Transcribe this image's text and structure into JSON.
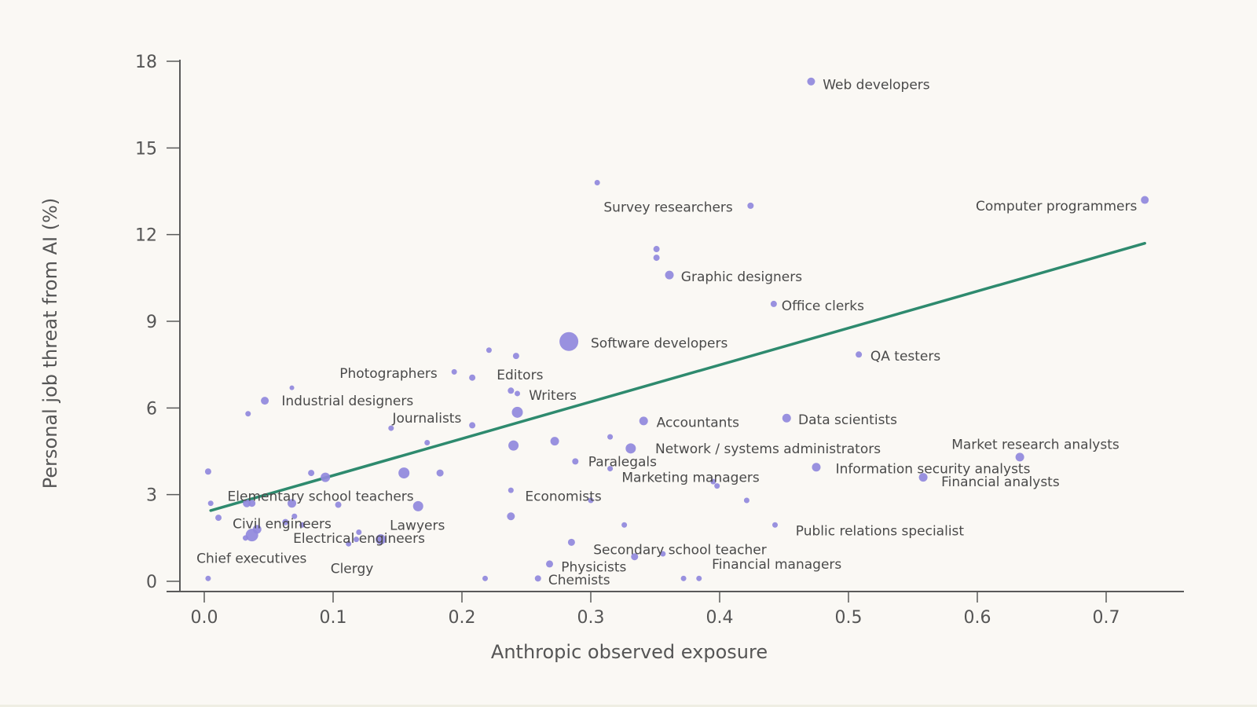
{
  "colors": {
    "background": "#faf8f4",
    "point": "#9088dc",
    "trend": "#2e8a6e",
    "axis": "#5a5a5a",
    "text": "#4a4a4a"
  },
  "chart_data": {
    "type": "scatter",
    "title": "",
    "xlabel": "Anthropic observed exposure",
    "ylabel": "Personal job threat from AI (%)",
    "xlim": [
      -0.02,
      0.765
    ],
    "ylim": [
      -0.25,
      18
    ],
    "xticks": [
      0.0,
      0.1,
      0.2,
      0.3,
      0.4,
      0.5,
      0.6,
      0.7
    ],
    "xtick_labels": [
      "0.0",
      "0.1",
      "0.2",
      "0.3",
      "0.4",
      "0.5",
      "0.6",
      "0.7"
    ],
    "yticks": [
      0,
      3,
      6,
      9,
      12,
      15,
      18
    ],
    "ytick_labels": [
      "0",
      "3",
      "6",
      "9",
      "12",
      "15",
      "18"
    ],
    "trend_line": {
      "x": [
        0.005,
        0.73
      ],
      "y": [
        2.45,
        11.7
      ]
    },
    "labels": [
      {
        "text": "Web developers",
        "x": 0.48,
        "y": 17.2,
        "anchor": "start"
      },
      {
        "text": "Survey researchers",
        "x": 0.31,
        "y": 12.95,
        "anchor": "start"
      },
      {
        "text": "Computer programmers",
        "x": 0.724,
        "y": 13.0,
        "anchor": "end"
      },
      {
        "text": "Graphic designers",
        "x": 0.37,
        "y": 10.55,
        "anchor": "start"
      },
      {
        "text": "Office clerks",
        "x": 0.448,
        "y": 9.55,
        "anchor": "start"
      },
      {
        "text": "Software developers",
        "x": 0.3,
        "y": 8.25,
        "anchor": "start"
      },
      {
        "text": "QA testers",
        "x": 0.517,
        "y": 7.8,
        "anchor": "start"
      },
      {
        "text": "Photographers",
        "x": 0.105,
        "y": 7.2,
        "anchor": "start"
      },
      {
        "text": "Editors",
        "x": 0.227,
        "y": 7.15,
        "anchor": "start"
      },
      {
        "text": "Writers",
        "x": 0.252,
        "y": 6.45,
        "anchor": "start"
      },
      {
        "text": "Industrial designers",
        "x": 0.06,
        "y": 6.25,
        "anchor": "start"
      },
      {
        "text": "Journalists",
        "x": 0.146,
        "y": 5.65,
        "anchor": "start"
      },
      {
        "text": "Accountants",
        "x": 0.351,
        "y": 5.5,
        "anchor": "start"
      },
      {
        "text": "Data scientists",
        "x": 0.461,
        "y": 5.6,
        "anchor": "start"
      },
      {
        "text": "Network / systems administrators",
        "x": 0.35,
        "y": 4.6,
        "anchor": "start"
      },
      {
        "text": "Market research analysts",
        "x": 0.58,
        "y": 4.75,
        "anchor": "start"
      },
      {
        "text": "Paralegals",
        "x": 0.298,
        "y": 4.15,
        "anchor": "start"
      },
      {
        "text": "Information security analysts",
        "x": 0.49,
        "y": 3.9,
        "anchor": "start"
      },
      {
        "text": "Marketing managers",
        "x": 0.324,
        "y": 3.6,
        "anchor": "start"
      },
      {
        "text": "Financial analysts",
        "x": 0.572,
        "y": 3.45,
        "anchor": "start"
      },
      {
        "text": "Elementary school teachers",
        "x": 0.018,
        "y": 2.95,
        "anchor": "start"
      },
      {
        "text": "Economists",
        "x": 0.249,
        "y": 2.95,
        "anchor": "start"
      },
      {
        "text": "Lawyers",
        "x": 0.144,
        "y": 1.95,
        "anchor": "start"
      },
      {
        "text": "Civil engineers",
        "x": 0.022,
        "y": 2.0,
        "anchor": "start"
      },
      {
        "text": "Public relations specialist",
        "x": 0.459,
        "y": 1.75,
        "anchor": "start"
      },
      {
        "text": "Electrical engineers",
        "x": 0.069,
        "y": 1.5,
        "anchor": "start"
      },
      {
        "text": "Secondary school teacher",
        "x": 0.302,
        "y": 1.1,
        "anchor": "start"
      },
      {
        "text": "Chief executives",
        "x": -0.006,
        "y": 0.8,
        "anchor": "start"
      },
      {
        "text": "Financial managers",
        "x": 0.394,
        "y": 0.6,
        "anchor": "start"
      },
      {
        "text": "Clergy",
        "x": 0.098,
        "y": 0.45,
        "anchor": "start"
      },
      {
        "text": "Physicists",
        "x": 0.277,
        "y": 0.5,
        "anchor": "start"
      },
      {
        "text": "Chemists",
        "x": 0.267,
        "y": 0.05,
        "anchor": "start"
      }
    ],
    "points": [
      {
        "x": 0.471,
        "y": 17.3,
        "size": 5
      },
      {
        "x": 0.305,
        "y": 13.8,
        "size": 3.5
      },
      {
        "x": 0.424,
        "y": 13.0,
        "size": 4
      },
      {
        "x": 0.73,
        "y": 13.2,
        "size": 5
      },
      {
        "x": 0.351,
        "y": 11.5,
        "size": 4
      },
      {
        "x": 0.351,
        "y": 11.2,
        "size": 4
      },
      {
        "x": 0.361,
        "y": 10.6,
        "size": 5.5
      },
      {
        "x": 0.442,
        "y": 9.6,
        "size": 4
      },
      {
        "x": 0.283,
        "y": 8.3,
        "size": 12
      },
      {
        "x": 0.508,
        "y": 7.85,
        "size": 4
      },
      {
        "x": 0.221,
        "y": 8.0,
        "size": 3.5
      },
      {
        "x": 0.242,
        "y": 7.8,
        "size": 4
      },
      {
        "x": 0.194,
        "y": 7.25,
        "size": 3.5
      },
      {
        "x": 0.208,
        "y": 7.05,
        "size": 4
      },
      {
        "x": 0.238,
        "y": 6.6,
        "size": 4
      },
      {
        "x": 0.243,
        "y": 6.5,
        "size": 3.5
      },
      {
        "x": 0.068,
        "y": 6.7,
        "size": 3
      },
      {
        "x": 0.047,
        "y": 6.25,
        "size": 5
      },
      {
        "x": 0.034,
        "y": 5.8,
        "size": 3.5
      },
      {
        "x": 0.243,
        "y": 5.85,
        "size": 7
      },
      {
        "x": 0.208,
        "y": 5.4,
        "size": 4
      },
      {
        "x": 0.145,
        "y": 5.3,
        "size": 3.5
      },
      {
        "x": 0.341,
        "y": 5.55,
        "size": 5.5
      },
      {
        "x": 0.452,
        "y": 5.65,
        "size": 5.5
      },
      {
        "x": 0.173,
        "y": 4.8,
        "size": 3.5
      },
      {
        "x": 0.315,
        "y": 5.0,
        "size": 3.5
      },
      {
        "x": 0.272,
        "y": 4.85,
        "size": 5.5
      },
      {
        "x": 0.24,
        "y": 4.7,
        "size": 6.5
      },
      {
        "x": 0.331,
        "y": 4.6,
        "size": 6.5
      },
      {
        "x": 0.633,
        "y": 4.3,
        "size": 5.5
      },
      {
        "x": 0.288,
        "y": 4.15,
        "size": 4
      },
      {
        "x": 0.475,
        "y": 3.95,
        "size": 5.5
      },
      {
        "x": 0.003,
        "y": 3.8,
        "size": 4
      },
      {
        "x": 0.083,
        "y": 3.75,
        "size": 4
      },
      {
        "x": 0.094,
        "y": 3.6,
        "size": 6
      },
      {
        "x": 0.155,
        "y": 3.75,
        "size": 7
      },
      {
        "x": 0.183,
        "y": 3.75,
        "size": 4.5
      },
      {
        "x": 0.315,
        "y": 3.9,
        "size": 3.5
      },
      {
        "x": 0.558,
        "y": 3.6,
        "size": 5.5
      },
      {
        "x": 0.395,
        "y": 3.45,
        "size": 3.5
      },
      {
        "x": 0.398,
        "y": 3.3,
        "size": 3.5
      },
      {
        "x": 0.238,
        "y": 3.15,
        "size": 3.5
      },
      {
        "x": 0.421,
        "y": 2.8,
        "size": 3.5
      },
      {
        "x": 0.3,
        "y": 2.8,
        "size": 3.5
      },
      {
        "x": 0.005,
        "y": 2.7,
        "size": 3.5
      },
      {
        "x": 0.033,
        "y": 2.7,
        "size": 5
      },
      {
        "x": 0.037,
        "y": 2.7,
        "size": 4.5
      },
      {
        "x": 0.068,
        "y": 2.7,
        "size": 5.5
      },
      {
        "x": 0.104,
        "y": 2.65,
        "size": 4
      },
      {
        "x": 0.166,
        "y": 2.6,
        "size": 6.5
      },
      {
        "x": 0.011,
        "y": 2.2,
        "size": 4
      },
      {
        "x": 0.063,
        "y": 2.05,
        "size": 4
      },
      {
        "x": 0.07,
        "y": 2.25,
        "size": 3.5
      },
      {
        "x": 0.076,
        "y": 1.95,
        "size": 3.5
      },
      {
        "x": 0.238,
        "y": 2.25,
        "size": 5
      },
      {
        "x": 0.326,
        "y": 1.95,
        "size": 3.5
      },
      {
        "x": 0.443,
        "y": 1.95,
        "size": 3.5
      },
      {
        "x": 0.041,
        "y": 1.8,
        "size": 5.5
      },
      {
        "x": 0.037,
        "y": 1.6,
        "size": 8
      },
      {
        "x": 0.032,
        "y": 1.5,
        "size": 3.5
      },
      {
        "x": 0.12,
        "y": 1.7,
        "size": 3.5
      },
      {
        "x": 0.118,
        "y": 1.45,
        "size": 3.5
      },
      {
        "x": 0.137,
        "y": 1.45,
        "size": 6.5
      },
      {
        "x": 0.112,
        "y": 1.3,
        "size": 3.5
      },
      {
        "x": 0.285,
        "y": 1.35,
        "size": 4.5
      },
      {
        "x": 0.356,
        "y": 0.95,
        "size": 3.5
      },
      {
        "x": 0.334,
        "y": 0.85,
        "size": 4.5
      },
      {
        "x": 0.268,
        "y": 0.6,
        "size": 4.5
      },
      {
        "x": 0.003,
        "y": 0.1,
        "size": 3.5
      },
      {
        "x": 0.218,
        "y": 0.1,
        "size": 3.5
      },
      {
        "x": 0.259,
        "y": 0.1,
        "size": 4
      },
      {
        "x": 0.372,
        "y": 0.1,
        "size": 3.5
      },
      {
        "x": 0.384,
        "y": 0.1,
        "size": 3.5
      }
    ]
  }
}
